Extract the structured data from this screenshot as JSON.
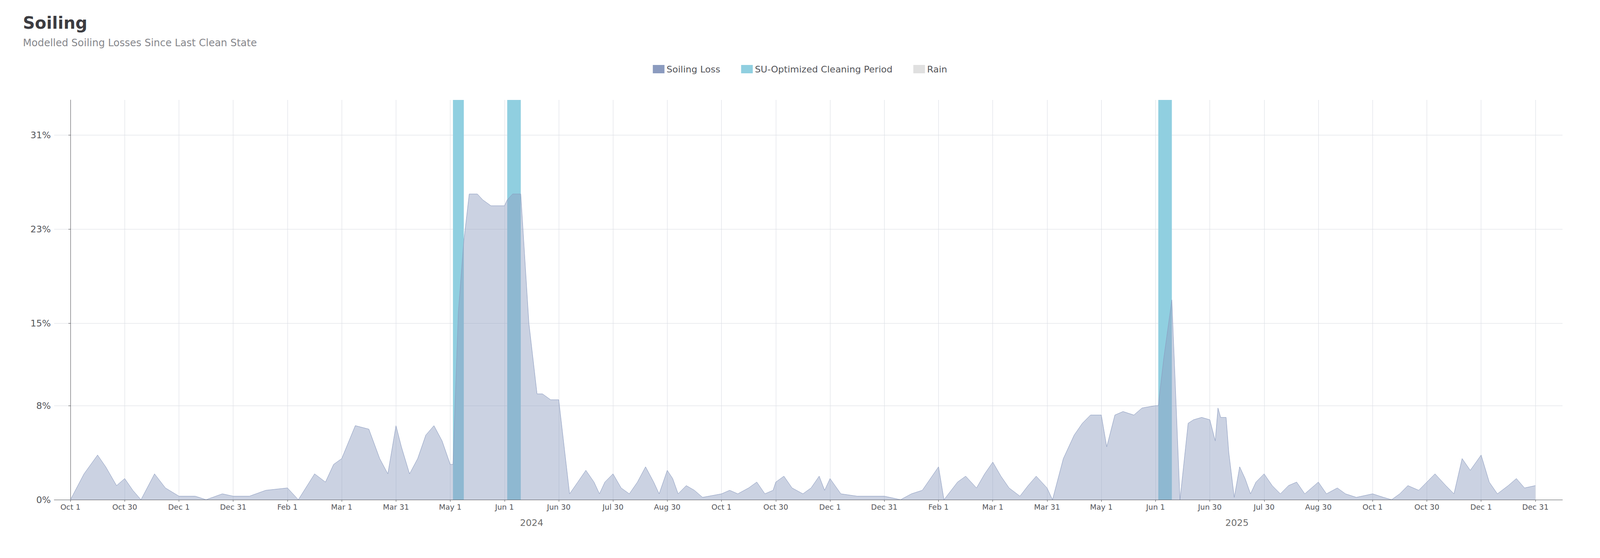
{
  "chart_data": {
    "type": "area",
    "title": "Soiling",
    "subtitle": "Modelled Soiling Losses Since Last Clean State",
    "x": [
      0.0,
      0.25,
      0.5,
      0.65,
      0.85,
      1.0,
      1.15,
      1.3,
      1.55,
      1.75,
      2.0,
      2.3,
      2.5,
      2.8,
      3.0,
      3.3,
      3.6,
      4.0,
      4.2,
      4.5,
      4.7,
      4.85,
      5.0,
      5.25,
      5.5,
      5.7,
      5.85,
      6.0,
      6.1,
      6.25,
      6.4,
      6.55,
      6.7,
      6.85,
      7.0,
      7.05,
      7.15,
      7.25,
      7.35,
      7.5,
      7.6,
      7.75,
      8.0,
      8.05,
      8.15,
      8.3,
      8.45,
      8.6,
      8.7,
      8.85,
      9.0,
      9.1,
      9.2,
      9.35,
      9.5,
      9.65,
      9.75,
      9.85,
      10.0,
      10.15,
      10.3,
      10.45,
      10.6,
      10.75,
      10.85,
      11.0,
      11.1,
      11.2,
      11.35,
      11.5,
      11.65,
      12.0,
      12.15,
      12.3,
      12.5,
      12.65,
      12.8,
      12.95,
      13.0,
      13.15,
      13.3,
      13.5,
      13.65,
      13.8,
      13.9,
      14.0,
      14.2,
      14.5,
      15.0,
      15.3,
      15.5,
      15.7,
      16.0,
      16.1,
      16.35,
      16.5,
      16.7,
      16.85,
      17.0,
      17.15,
      17.3,
      17.5,
      17.65,
      17.8,
      18.0,
      18.1,
      18.3,
      18.5,
      18.65,
      18.8,
      19.0,
      19.1,
      19.25,
      19.4,
      19.6,
      19.75,
      20.0,
      20.05,
      20.15,
      20.3,
      20.45,
      20.6,
      20.7,
      20.85,
      21.0,
      21.1,
      21.15,
      21.2,
      21.3,
      21.35,
      21.45,
      21.55,
      21.65,
      21.75,
      21.85,
      22.0,
      22.15,
      22.3,
      22.45,
      22.6,
      22.75,
      23.0,
      23.15,
      23.35,
      23.5,
      23.7,
      24.0,
      24.2,
      24.35,
      24.5,
      24.65,
      24.85,
      25.0,
      25.15,
      25.35,
      25.5,
      25.65,
      25.8,
      26.0,
      26.15,
      26.3,
      26.5,
      26.65,
      26.8,
      27.0
    ],
    "series": [
      {
        "name": "Soiling Loss",
        "type": "area",
        "color": "#8b9bbf",
        "values": [
          0.0,
          0.022,
          0.038,
          0.028,
          0.012,
          0.018,
          0.008,
          0.0,
          0.022,
          0.01,
          0.003,
          0.003,
          0.0,
          0.005,
          0.003,
          0.003,
          0.008,
          0.01,
          0.0,
          0.022,
          0.015,
          0.03,
          0.035,
          0.063,
          0.06,
          0.035,
          0.022,
          0.063,
          0.045,
          0.022,
          0.035,
          0.055,
          0.063,
          0.05,
          0.03,
          0.03,
          0.16,
          0.22,
          0.26,
          0.26,
          0.255,
          0.25,
          0.25,
          0.255,
          0.26,
          0.26,
          0.15,
          0.09,
          0.09,
          0.085,
          0.085,
          0.045,
          0.005,
          0.015,
          0.025,
          0.015,
          0.005,
          0.015,
          0.022,
          0.01,
          0.005,
          0.015,
          0.028,
          0.015,
          0.005,
          0.025,
          0.018,
          0.005,
          0.012,
          0.008,
          0.002,
          0.005,
          0.008,
          0.005,
          0.01,
          0.015,
          0.005,
          0.008,
          0.015,
          0.02,
          0.01,
          0.005,
          0.01,
          0.02,
          0.008,
          0.018,
          0.005,
          0.003,
          0.003,
          0.0,
          0.005,
          0.008,
          0.028,
          0.0,
          0.015,
          0.02,
          0.01,
          0.022,
          0.032,
          0.02,
          0.01,
          0.003,
          0.012,
          0.02,
          0.01,
          0.0,
          0.035,
          0.055,
          0.065,
          0.072,
          0.072,
          0.045,
          0.072,
          0.075,
          0.072,
          0.078,
          0.08,
          0.08,
          0.12,
          0.17,
          0.0,
          0.065,
          0.068,
          0.07,
          0.068,
          0.05,
          0.078,
          0.07,
          0.07,
          0.04,
          0.002,
          0.028,
          0.018,
          0.005,
          0.015,
          0.022,
          0.012,
          0.005,
          0.012,
          0.015,
          0.005,
          0.015,
          0.005,
          0.01,
          0.005,
          0.002,
          0.005,
          0.002,
          0.0,
          0.005,
          0.012,
          0.008,
          0.015,
          0.022,
          0.012,
          0.005,
          0.035,
          0.025,
          0.038,
          0.015,
          0.005,
          0.012,
          0.018,
          0.01,
          0.012
        ]
      },
      {
        "name": "SU-Optimized Cleaning Period",
        "type": "band",
        "color": "#90cfe0",
        "ranges": [
          [
            7.05,
            7.25
          ],
          [
            8.05,
            8.3
          ],
          [
            20.05,
            20.3
          ]
        ]
      },
      {
        "name": "Rain",
        "type": "band",
        "color": "#e0e0e0",
        "ranges": []
      }
    ],
    "xlim": [
      -0.3,
      27.5
    ],
    "xticks": [
      {
        "value": 0,
        "label": "Oct 1"
      },
      {
        "value": 1,
        "label": "Oct 30"
      },
      {
        "value": 2,
        "label": "Dec 1"
      },
      {
        "value": 3,
        "label": "Dec 31"
      },
      {
        "value": 4,
        "label": "Feb 1"
      },
      {
        "value": 5,
        "label": "Mar 1"
      },
      {
        "value": 6,
        "label": "Mar 31"
      },
      {
        "value": 7,
        "label": "May 1"
      },
      {
        "value": 8,
        "label": "Jun 1"
      },
      {
        "value": 9,
        "label": "Jun 30"
      },
      {
        "value": 10,
        "label": "Jul 30"
      },
      {
        "value": 11,
        "label": "Aug 30"
      },
      {
        "value": 12,
        "label": "Oct 1"
      },
      {
        "value": 13,
        "label": "Oct 30"
      },
      {
        "value": 14,
        "label": "Dec 1"
      },
      {
        "value": 15,
        "label": "Dec 31"
      },
      {
        "value": 16,
        "label": "Feb 1"
      },
      {
        "value": 17,
        "label": "Mar 1"
      },
      {
        "value": 18,
        "label": "Mar 31"
      },
      {
        "value": 19,
        "label": "May 1"
      },
      {
        "value": 20,
        "label": "Jun 1"
      },
      {
        "value": 21,
        "label": "Jun 30"
      },
      {
        "value": 22,
        "label": "Jul 30"
      },
      {
        "value": 23,
        "label": "Aug 30"
      },
      {
        "value": 24,
        "label": "Oct 1"
      },
      {
        "value": 25,
        "label": "Oct 30"
      },
      {
        "value": 26,
        "label": "Dec 1"
      },
      {
        "value": 27,
        "label": "Dec 31"
      }
    ],
    "ylim": [
      0,
      0.34
    ],
    "yticks": [
      {
        "value": 0.0,
        "label": "0%"
      },
      {
        "value": 0.08,
        "label": "8%"
      },
      {
        "value": 0.15,
        "label": "15%"
      },
      {
        "value": 0.23,
        "label": "23%"
      },
      {
        "value": 0.31,
        "label": "31%"
      }
    ],
    "annotations": [
      {
        "text": "2024",
        "x": 8.5
      },
      {
        "text": "2025",
        "x": 21.5
      }
    ],
    "grid": true,
    "legend": "top"
  }
}
